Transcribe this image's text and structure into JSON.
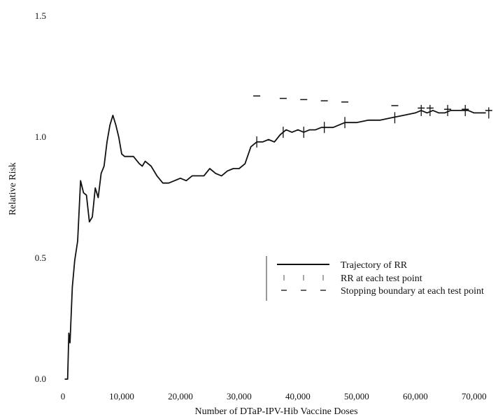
{
  "chart_data": {
    "type": "line",
    "title": "",
    "xlabel": "Number of DTaP-IPV-Hib Vaccine Doses",
    "ylabel": "Relative Risk",
    "xlim": [
      0,
      73000
    ],
    "ylim": [
      0,
      1.5
    ],
    "x_ticks": [
      0,
      10000,
      20000,
      30000,
      40000,
      50000,
      60000,
      70000
    ],
    "x_tick_labels": [
      "0",
      "10,000",
      "20,000",
      "30,000",
      "40,000",
      "50,000",
      "60,000",
      "70,000"
    ],
    "y_ticks": [
      0.0,
      0.5,
      1.0,
      1.5
    ],
    "y_tick_labels": [
      "0.0",
      "0.5",
      "1.0",
      "1.5"
    ],
    "grid": false,
    "legend_position": "lower-right",
    "legend": [
      "Trajectory of RR",
      "RR at each test point",
      "Stopping boundary at each test point"
    ],
    "series": [
      {
        "name": "Trajectory of RR",
        "style": "line",
        "color": "#111111",
        "x": [
          300,
          800,
          1000,
          1200,
          1600,
          2000,
          2500,
          3000,
          3500,
          4000,
          4500,
          5000,
          5500,
          6000,
          6500,
          7000,
          7500,
          8000,
          8500,
          9000,
          9500,
          10000,
          10500,
          11000,
          12000,
          13000,
          13500,
          14000,
          15000,
          16000,
          17000,
          18000,
          19000,
          20000,
          21000,
          22000,
          23000,
          24000,
          25000,
          26000,
          27000,
          28000,
          29000,
          30000,
          31000,
          32000,
          33000,
          34000,
          35000,
          36000,
          37000,
          38000,
          39000,
          40000,
          41000,
          42000,
          43000,
          44000,
          45000,
          46000,
          47000,
          48000,
          50000,
          52000,
          54000,
          56000,
          58000,
          60000,
          61000,
          62000,
          63000,
          64000,
          65000,
          66000,
          67000,
          68000,
          69000,
          70000,
          71000,
          72000
        ],
        "y": [
          0.0,
          0.0,
          0.19,
          0.15,
          0.38,
          0.49,
          0.57,
          0.82,
          0.77,
          0.76,
          0.65,
          0.67,
          0.79,
          0.75,
          0.85,
          0.88,
          0.98,
          1.05,
          1.09,
          1.05,
          1.0,
          0.93,
          0.92,
          0.92,
          0.92,
          0.89,
          0.88,
          0.9,
          0.88,
          0.84,
          0.81,
          0.81,
          0.82,
          0.83,
          0.82,
          0.84,
          0.84,
          0.84,
          0.87,
          0.85,
          0.84,
          0.86,
          0.87,
          0.87,
          0.89,
          0.96,
          0.98,
          0.98,
          0.99,
          0.98,
          1.01,
          1.03,
          1.02,
          1.03,
          1.02,
          1.03,
          1.03,
          1.04,
          1.04,
          1.04,
          1.05,
          1.06,
          1.06,
          1.07,
          1.07,
          1.08,
          1.09,
          1.1,
          1.11,
          1.1,
          1.11,
          1.1,
          1.1,
          1.11,
          1.11,
          1.11,
          1.11,
          1.1,
          1.1,
          1.1
        ]
      },
      {
        "name": "RR at each test point",
        "style": "vertical-tick",
        "color": "#111111",
        "x": [
          33000,
          37500,
          41000,
          44500,
          48000,
          56500,
          61000,
          62500,
          65500,
          68500,
          72500
        ],
        "y": [
          0.98,
          1.02,
          1.02,
          1.04,
          1.06,
          1.08,
          1.11,
          1.11,
          1.11,
          1.11,
          1.1
        ]
      },
      {
        "name": "Stopping boundary at each test point",
        "style": "horizontal-dash",
        "color": "#111111",
        "x": [
          33000,
          37500,
          41000,
          44500,
          48000,
          56500,
          61000,
          62500,
          65500,
          68500,
          72500
        ],
        "y": [
          1.17,
          1.16,
          1.155,
          1.15,
          1.145,
          1.13,
          1.12,
          1.12,
          1.115,
          1.115,
          1.11
        ]
      }
    ]
  }
}
